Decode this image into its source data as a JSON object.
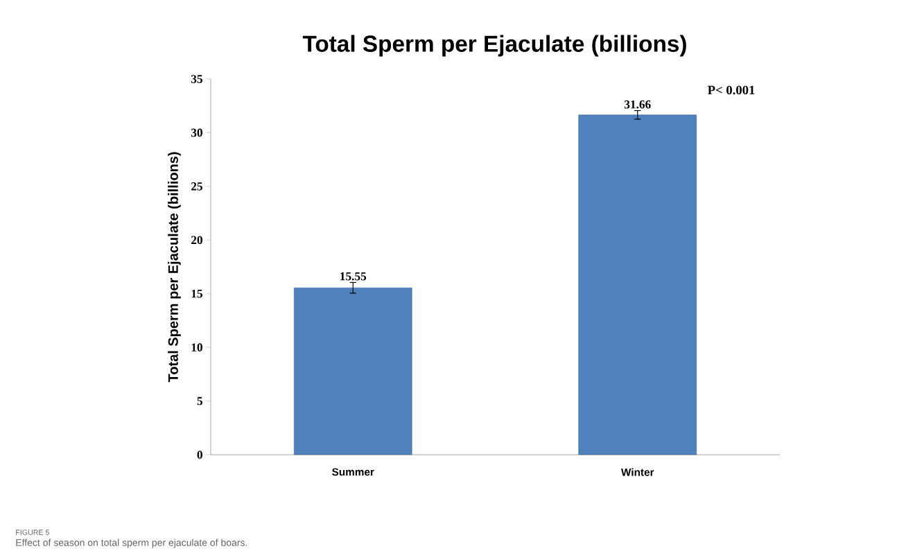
{
  "chart_data": {
    "type": "bar",
    "title": "Total Sperm per Ejaculate (billions)",
    "ylabel": "Total Sperm per Ejaculate (billions)",
    "categories": [
      "Summer",
      "Winter"
    ],
    "values": [
      15.55,
      31.66
    ],
    "errors": [
      0.5,
      0.4
    ],
    "color": "#4f81bd",
    "data_labels": true,
    "ylim": [
      0,
      35
    ],
    "yticks": [
      0,
      5,
      10,
      15,
      20,
      25,
      30,
      35
    ],
    "grid": false,
    "annotations": [
      "P< 0.001",
      "FIGURE 5",
      "Effect of season on total sperm per ejaculate of boars."
    ]
  }
}
